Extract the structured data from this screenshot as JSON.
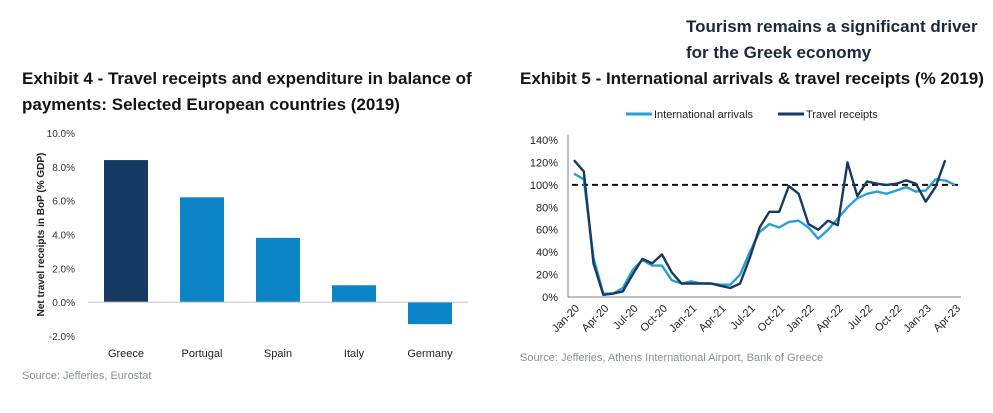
{
  "headline": {
    "line1": "Tourism remains a significant driver",
    "line2": "for the Greek economy"
  },
  "exhibit4": {
    "title": "Exhibit 4 - Travel receipts and expenditure in balance of payments: Selected European countries (2019)",
    "source": "Source: Jefferies, Eurostat"
  },
  "exhibit5": {
    "title": "Exhibit 5 - International arrivals & travel receipts (% 2019)",
    "source": "Source: Jefferies, Athens International Airport, Bank of Greece"
  },
  "chart_data": [
    {
      "type": "bar",
      "title": "Exhibit 4 - Travel receipts and expenditure in balance of payments: Selected European countries (2019)",
      "categories": [
        "Greece",
        "Portugal",
        "Spain",
        "Italy",
        "Germany"
      ],
      "values": [
        8.4,
        6.2,
        3.8,
        1.0,
        -1.3
      ],
      "colors": [
        "#163a63",
        "#0d84c6",
        "#0d84c6",
        "#0d84c6",
        "#0d84c6"
      ],
      "ylabel": "Net travel receipts in BoP (% GDP)",
      "xlabel": "",
      "ylim": [
        -2,
        10
      ],
      "yticks": [
        -2,
        0,
        2,
        4,
        6,
        8,
        10
      ],
      "ytick_labels": [
        "-2.0%",
        "0.0%",
        "2.0%",
        "4.0%",
        "6.0%",
        "8.0%",
        "10.0%"
      ]
    },
    {
      "type": "line",
      "title": "Exhibit 5 - International arrivals & travel receipts (% 2019)",
      "ylim": [
        0,
        140
      ],
      "yticks": [
        0,
        20,
        40,
        60,
        80,
        100,
        120,
        140
      ],
      "ytick_labels": [
        "0%",
        "20%",
        "40%",
        "60%",
        "80%",
        "100%",
        "120%",
        "140%"
      ],
      "xtick_labels": [
        "Jan-20",
        "Apr-20",
        "Jul-20",
        "Oct-20",
        "Jan-21",
        "Apr-21",
        "Jul-21",
        "Oct-21",
        "Jan-22",
        "Apr-22",
        "Jul-22",
        "Oct-22",
        "Jan-23",
        "Apr-23"
      ],
      "reference_line": 100,
      "series": [
        {
          "name": "International arrivals",
          "color": "#2a9fd6",
          "values": [
            110,
            105,
            35,
            3,
            3,
            8,
            24,
            33,
            28,
            28,
            15,
            12,
            14,
            12,
            12,
            11,
            11,
            20,
            40,
            58,
            65,
            62,
            67,
            68,
            62,
            52,
            60,
            70,
            80,
            88,
            92,
            94,
            92,
            95,
            98,
            94,
            95,
            105,
            104,
            100
          ]
        },
        {
          "name": "Travel receipts",
          "color": "#173a63",
          "values": [
            122,
            112,
            30,
            2,
            3,
            5,
            20,
            34,
            30,
            38,
            22,
            12,
            12,
            12,
            12,
            10,
            8,
            12,
            35,
            62,
            76,
            76,
            99,
            92,
            65,
            60,
            68,
            64,
            120,
            90,
            103,
            101,
            100,
            101,
            104,
            101,
            85,
            98,
            122
          ]
        }
      ]
    }
  ]
}
